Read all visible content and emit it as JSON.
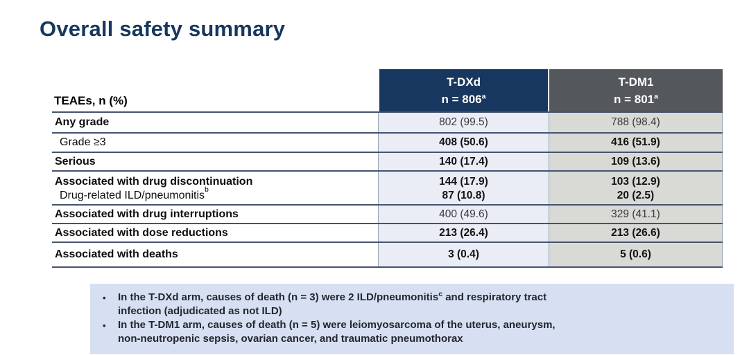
{
  "slide": {
    "title": "Overall safety summary"
  },
  "colors": {
    "title_text": "#17375e",
    "header_tdxd_bg": "#17375e",
    "header_tdm1_bg": "#54575c",
    "column_tdxd_bg": "#eaecf6",
    "column_tdm1_bg": "#d9d9d6",
    "footer_bg": "#d6e0f2",
    "row_border": "#44536e"
  },
  "table": {
    "corner_label": "TEAEs, n (%)",
    "columns": [
      {
        "drug": "T-DXd",
        "n_value": "n = 806",
        "n_sup": "a"
      },
      {
        "drug": "T-DM1",
        "n_value": "n = 801",
        "n_sup": "a"
      }
    ],
    "rows": [
      {
        "label": "Any grade",
        "label_sup": "",
        "tdxd": "802 (99.5)",
        "tdm1": "788 (98.4)"
      },
      {
        "label": "Grade ≥3",
        "label_sup": "",
        "tdxd": "408 (50.6)",
        "tdm1": "416 (51.9)"
      },
      {
        "label": "Serious",
        "label_sup": "",
        "tdxd": "140 (17.4)",
        "tdm1": "109 (13.6)"
      },
      {
        "label": "Associated with drug discontinuation",
        "label_sup": "",
        "tdxd": "144 (17.9)",
        "tdm1": "103 (12.9)"
      },
      {
        "label": "Drug-related ILD/pneumonitis",
        "label_sup": "b",
        "tdxd": "87 (10.8)",
        "tdm1": "20 (2.5)"
      },
      {
        "label": "Associated with drug interruptions",
        "label_sup": "",
        "tdxd": "400 (49.6)",
        "tdm1": "329 (41.1)"
      },
      {
        "label": "Associated with dose reductions",
        "label_sup": "",
        "tdxd": "213 (26.4)",
        "tdm1": "213 (26.6)"
      },
      {
        "label": "Associated with deaths",
        "label_sup": "",
        "tdxd": "3 (0.4)",
        "tdm1": "5 (0.6)"
      }
    ]
  },
  "footer": {
    "bullet_char": "•",
    "bullets": [
      {
        "line1_pre": "In the T-DXd arm, causes of death (n = 3) were 2 ILD/pneumonitis",
        "line1_sup": "c",
        "line1_post": " and respiratory tract",
        "line2": "infection (adjudicated as not ILD)"
      },
      {
        "line1_pre": "In the T-DM1 arm, causes of death (n = 5) were leiomyosarcoma of the uterus, aneurysm,",
        "line1_sup": "",
        "line1_post": "",
        "line2": "non-neutropenic sepsis, ovarian cancer, and traumatic pneumothorax"
      }
    ]
  }
}
